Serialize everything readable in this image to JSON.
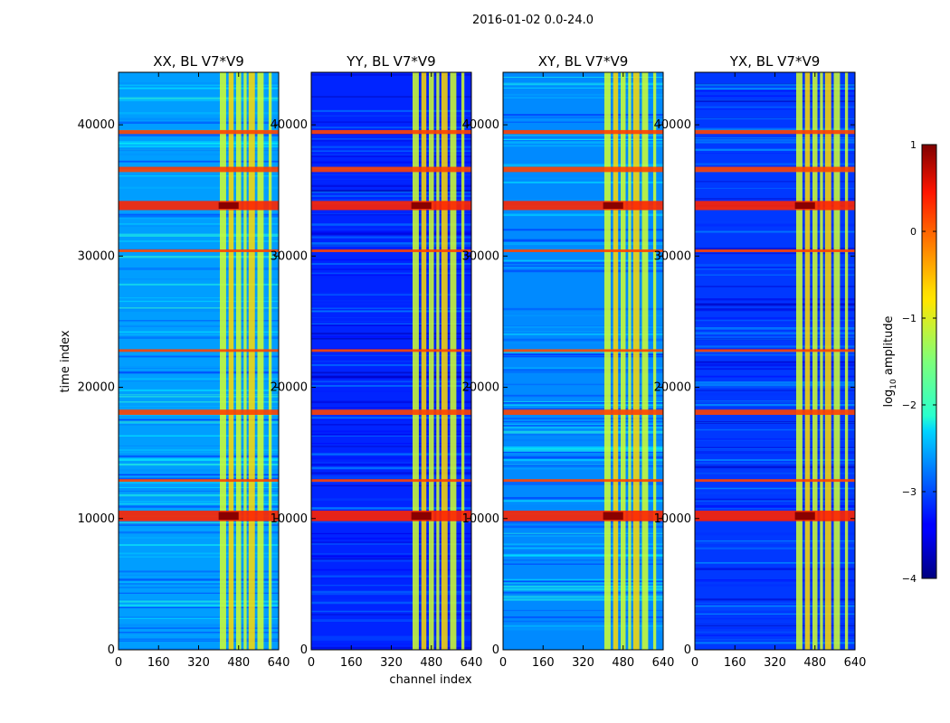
{
  "chart_data": {
    "type": "heatmap",
    "suptitle": "2016-01-02 0.0-24.0",
    "xlabel": "channel index",
    "ylabel": "time index",
    "xlim": [
      0,
      640
    ],
    "ylim": [
      0,
      44000
    ],
    "xticks": [
      "0",
      "160",
      "320",
      "480",
      "640"
    ],
    "xtick_values": [
      0,
      160,
      320,
      480,
      640
    ],
    "yticks": [
      "0",
      "10000",
      "20000",
      "30000",
      "40000"
    ],
    "ytick_values": [
      0,
      10000,
      20000,
      30000,
      40000
    ],
    "colorbar": {
      "label_prefix": "log",
      "label_sub": "10",
      "label_suffix": " amplitude",
      "range": [
        -4,
        1
      ],
      "ticks": [
        "−4",
        "−3",
        "−2",
        "−1",
        "0",
        "1"
      ],
      "tick_values": [
        -4,
        -3,
        -2,
        -1,
        0,
        1
      ],
      "colormap": "jet"
    },
    "panels": [
      {
        "title": "XX, BL V7*V9",
        "background_level": -2.6
      },
      {
        "title": "YY, BL V7*V9",
        "background_level": -3.2
      },
      {
        "title": "XY, BL V7*V9",
        "background_level": -2.7
      },
      {
        "title": "YX, BL V7*V9",
        "background_level": -3.1
      }
    ],
    "rfi_channel_bands": [
      [
        405,
        430
      ],
      [
        440,
        460
      ],
      [
        470,
        490
      ],
      [
        500,
        512
      ],
      [
        520,
        545
      ],
      [
        555,
        580
      ],
      [
        600,
        612
      ]
    ],
    "strong_time_bands": [
      [
        9800,
        10600
      ],
      [
        33500,
        34200
      ],
      [
        17900,
        18300
      ],
      [
        36400,
        36800
      ],
      [
        39300,
        39600
      ],
      [
        22700,
        22900
      ],
      [
        12800,
        13000
      ],
      [
        30300,
        30500
      ]
    ]
  }
}
